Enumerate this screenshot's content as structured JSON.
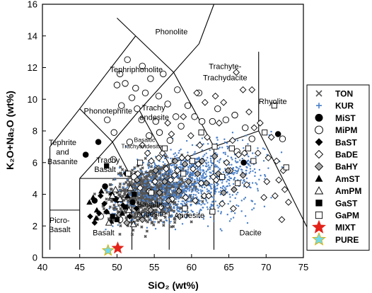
{
  "chart_data": {
    "type": "scatter",
    "xlabel": "SiO₂ (wt%)",
    "ylabel": "K₂O+Na₂O (wt%)",
    "xlim": [
      40,
      75
    ],
    "ylim": [
      0,
      16
    ],
    "xticks": [
      40,
      45,
      50,
      55,
      60,
      65,
      70,
      75
    ],
    "yticks": [
      0,
      2,
      4,
      6,
      8,
      10,
      12,
      14,
      16
    ],
    "grid": false,
    "legend_position": "right",
    "fields": [
      {
        "label": "Phonolite",
        "x": 57.3,
        "y": 14.1
      },
      {
        "label": "Trachyte-",
        "x": 64.5,
        "y": 11.9
      },
      {
        "label": "Trachydacite",
        "x": 64.5,
        "y": 11.2
      },
      {
        "label": "Tephriphonolite",
        "x": 52.6,
        "y": 11.7
      },
      {
        "label": "Phonotephrite",
        "x": 48.8,
        "y": 9.1
      },
      {
        "label": "Trachy",
        "x": 54.9,
        "y": 9.3
      },
      {
        "label": "andesite",
        "x": 55.0,
        "y": 8.7
      },
      {
        "label": "Rhyolite",
        "x": 70.9,
        "y": 9.7
      },
      {
        "label": "Tephrite",
        "x": 42.7,
        "y": 7.1
      },
      {
        "label": "and",
        "x": 42.7,
        "y": 6.5
      },
      {
        "label": "Basanite",
        "x": 42.7,
        "y": 5.9
      },
      {
        "label": "Trachy",
        "x": 48.8,
        "y": 6.0
      },
      {
        "label": "Basalt",
        "x": 48.4,
        "y": 5.4
      },
      {
        "label": "Dacite",
        "x": 67.9,
        "y": 1.4
      },
      {
        "label": "Andesite",
        "x": 59.7,
        "y": 2.5
      },
      {
        "label": "Basaltic",
        "x": 54.5,
        "y": 3.2
      },
      {
        "label": "andesite",
        "x": 54.6,
        "y": 2.6
      },
      {
        "label": "Picro-",
        "x": 42.3,
        "y": 2.2
      },
      {
        "label": "Basalt",
        "x": 42.3,
        "y": 1.6
      },
      {
        "label": "Basalt",
        "x": 48.2,
        "y": 1.4
      }
    ],
    "fields_small": [
      {
        "label": "Basaltic",
        "x": 53.7,
        "y": 7.3
      },
      {
        "label": "Trachyandesite",
        "x": 53.3,
        "y": 6.9
      }
    ],
    "series": [
      {
        "name": "TON",
        "marker": "x",
        "color": "#555555",
        "cloud": {
          "x": [
            45.5,
            63.0
          ],
          "y": [
            0.8,
            6.8
          ],
          "center": [
            51.5,
            3.6
          ],
          "n": 800
        }
      },
      {
        "name": "KUR",
        "marker": "plus",
        "color": "#4a7fc6",
        "cloud": {
          "x": [
            45.0,
            75.0
          ],
          "y": [
            0.8,
            8.4
          ],
          "center": [
            58.0,
            4.6
          ],
          "n": 1100
        }
      },
      {
        "name": "MiST",
        "marker": "circle-filled",
        "color": "#000000",
        "points": [
          [
            47.5,
            7.3
          ],
          [
            48.4,
            4.5
          ],
          [
            45.8,
            6.5
          ],
          [
            47.0,
            3.6
          ],
          [
            71.6,
            7.8
          ],
          [
            67.0,
            6.0
          ],
          [
            52.1,
            3.5
          ],
          [
            49.8,
            3.7
          ]
        ]
      },
      {
        "name": "MiPM",
        "marker": "circle-open",
        "color": "#000000",
        "points": [
          [
            51.1,
            11.0
          ],
          [
            52.5,
            10.7
          ],
          [
            52.0,
            10.1
          ],
          [
            53.4,
            12.1
          ],
          [
            54.5,
            11.3
          ],
          [
            55.6,
            10.2
          ],
          [
            56.8,
            9.7
          ],
          [
            56.2,
            11.6
          ],
          [
            57.9,
            8.9
          ],
          [
            58.6,
            8.3
          ],
          [
            59.5,
            9.6
          ],
          [
            60.4,
            8.9
          ],
          [
            61.4,
            8.6
          ],
          [
            62.8,
            8.6
          ],
          [
            64.6,
            8.7
          ],
          [
            65.8,
            9.0
          ],
          [
            67.2,
            8.2
          ],
          [
            68.1,
            7.5
          ],
          [
            52.7,
            9.4
          ],
          [
            53.3,
            8.7
          ],
          [
            54.3,
            7.7
          ],
          [
            55.2,
            8.6
          ],
          [
            50.6,
            9.6
          ],
          [
            50.4,
            11.6
          ],
          [
            50.0,
            10.9
          ],
          [
            51.4,
            12.5
          ],
          [
            49.6,
            7.9
          ],
          [
            48.7,
            8.7
          ],
          [
            55.7,
            7.9
          ],
          [
            57.1,
            7.4
          ],
          [
            61.0,
            10.4
          ],
          [
            63.5,
            9.4
          ],
          [
            58.1,
            10.6
          ],
          [
            66.1,
            6.7
          ],
          [
            72.2,
            7.5
          ],
          [
            51.7,
            7.3
          ],
          [
            53.8,
            10.4
          ],
          [
            52.3,
            5.1
          ],
          [
            47.8,
            2.6
          ],
          [
            50.4,
            2.4
          ],
          [
            49.5,
            6.2
          ]
        ]
      },
      {
        "name": "BaST",
        "marker": "diamond-filled",
        "color": "#000000",
        "points": [
          [
            47.8,
            3.9
          ],
          [
            48.3,
            3.4
          ],
          [
            47.6,
            2.8
          ],
          [
            46.4,
            2.6
          ],
          [
            49.3,
            4.0
          ],
          [
            50.8,
            3.3
          ],
          [
            51.7,
            2.6
          ],
          [
            52.6,
            3.1
          ],
          [
            47.0,
            2.2
          ],
          [
            48.6,
            2.9
          ],
          [
            51.2,
            5.3
          ],
          [
            50.1,
            3.6
          ]
        ]
      },
      {
        "name": "BaDE",
        "marker": "diamond-open",
        "color": "#000000",
        "points": [
          [
            61.8,
            9.8
          ],
          [
            63.2,
            10.2
          ],
          [
            64.3,
            9.8
          ],
          [
            66.0,
            11.7
          ],
          [
            66.9,
            10.6
          ],
          [
            67.7,
            9.2
          ],
          [
            68.4,
            8.2
          ],
          [
            69.2,
            8.5
          ],
          [
            70.7,
            7.6
          ],
          [
            71.4,
            6.1
          ],
          [
            72.5,
            4.3
          ],
          [
            73.0,
            3.5
          ],
          [
            72.3,
            5.5
          ],
          [
            70.1,
            4.8
          ],
          [
            68.9,
            6.6
          ],
          [
            67.1,
            6.6
          ],
          [
            66.3,
            6.5
          ],
          [
            65.2,
            5.5
          ],
          [
            64.7,
            6.0
          ],
          [
            63.3,
            4.9
          ],
          [
            62.9,
            5.1
          ],
          [
            61.3,
            4.7
          ],
          [
            60.9,
            5.9
          ],
          [
            60.2,
            5.6
          ],
          [
            59.5,
            6.3
          ],
          [
            58.7,
            6.3
          ],
          [
            58.1,
            5.5
          ],
          [
            57.7,
            5.2
          ],
          [
            57.2,
            4.9
          ],
          [
            56.6,
            5.6
          ],
          [
            56.1,
            6.6
          ],
          [
            55.6,
            6.3
          ],
          [
            54.6,
            6.1
          ],
          [
            54.1,
            6.6
          ],
          [
            53.4,
            7.1
          ],
          [
            52.8,
            5.3
          ],
          [
            53.1,
            4.4
          ],
          [
            54.3,
            4.2
          ],
          [
            55.1,
            4.8
          ],
          [
            55.9,
            3.2
          ],
          [
            57.4,
            3.7
          ],
          [
            58.4,
            2.6
          ],
          [
            59.2,
            3.8
          ],
          [
            60.5,
            3.6
          ],
          [
            61.7,
            3.9
          ],
          [
            62.3,
            3.9
          ],
          [
            64.1,
            3.4
          ],
          [
            65.6,
            3.1
          ],
          [
            67.4,
            4.6
          ],
          [
            69.7,
            3.8
          ],
          [
            71.2,
            3.9
          ],
          [
            72.1,
            2.4
          ],
          [
            63.7,
            8.5
          ],
          [
            65.5,
            7.4
          ],
          [
            62.1,
            7.6
          ],
          [
            61.1,
            7.1
          ],
          [
            59.9,
            7.7
          ],
          [
            56.8,
            8.5
          ],
          [
            58.9,
            8.9
          ],
          [
            60.7,
            10.4
          ],
          [
            57.3,
            7.8
          ],
          [
            68.1,
            10.6
          ],
          [
            70.3,
            6.3
          ],
          [
            71.7,
            4.9
          ]
        ]
      },
      {
        "name": "BaHY",
        "marker": "diamond-gray",
        "color": "#aaaaaa",
        "points": [
          [
            50.3,
            2.7
          ],
          [
            51.3,
            2.2
          ],
          [
            53.4,
            2.4
          ],
          [
            54.5,
            3.0
          ],
          [
            55.7,
            4.1
          ],
          [
            56.9,
            3.6
          ],
          [
            58.3,
            4.2
          ],
          [
            59.6,
            4.8
          ],
          [
            60.8,
            5.3
          ],
          [
            62.0,
            4.7
          ],
          [
            63.6,
            5.3
          ],
          [
            64.3,
            4.1
          ],
          [
            65.7,
            4.3
          ],
          [
            66.9,
            5.2
          ],
          [
            55.2,
            5.5
          ],
          [
            57.8,
            6.1
          ],
          [
            61.4,
            6.1
          ],
          [
            63.1,
            6.4
          ],
          [
            52.7,
            4.9
          ],
          [
            56.4,
            4.8
          ],
          [
            59.1,
            5.9
          ],
          [
            64.9,
            5.5
          ]
        ]
      },
      {
        "name": "AmST",
        "marker": "triangle-filled",
        "color": "#000000",
        "points": [
          [
            46.3,
            3.5
          ],
          [
            47.3,
            3.0
          ],
          [
            48.7,
            2.9
          ],
          [
            47.2,
            2.5
          ],
          [
            46.8,
            3.8
          ],
          [
            50.7,
            2.8
          ],
          [
            49.2,
            2.3
          ],
          [
            47.9,
            4.2
          ],
          [
            51.4,
            3.9
          ]
        ]
      },
      {
        "name": "AmPM",
        "marker": "triangle-open",
        "color": "#000000",
        "points": [
          [
            49.8,
            4.3
          ],
          [
            50.4,
            3.7
          ],
          [
            51.6,
            3.0
          ],
          [
            52.2,
            2.1
          ],
          [
            53.0,
            2.7
          ],
          [
            48.9,
            2.2
          ],
          [
            49.4,
            3.9
          ],
          [
            51.8,
            4.4
          ]
        ]
      },
      {
        "name": "GaST",
        "marker": "square-filled",
        "color": "#000000",
        "points": [
          [
            48.6,
            5.8
          ],
          [
            49.4,
            2.6
          ],
          [
            50.0,
            2.4
          ],
          [
            52.3,
            4.0
          ],
          [
            51.1,
            3.2
          ]
        ]
      },
      {
        "name": "GaPM",
        "marker": "square-open",
        "color": "#000000",
        "points": [
          [
            51.5,
            5.3
          ],
          [
            53.1,
            6.0
          ],
          [
            60.1,
            6.1
          ],
          [
            63.1,
            7.0
          ],
          [
            64.1,
            5.1
          ],
          [
            66.2,
            4.7
          ],
          [
            67.6,
            6.9
          ],
          [
            68.3,
            6.1
          ],
          [
            69.8,
            7.9
          ],
          [
            71.1,
            9.6
          ],
          [
            72.7,
            5.7
          ],
          [
            61.3,
            7.9
          ],
          [
            65.4,
            6.9
          ],
          [
            54.6,
            4.1
          ],
          [
            58.9,
            5.3
          ],
          [
            56.4,
            6.9
          ],
          [
            59.1,
            3.1
          ],
          [
            62.8,
            2.9
          ]
        ]
      },
      {
        "name": "MIXT",
        "marker": "star",
        "color": "#e32219",
        "points": [
          [
            50.1,
            0.6
          ]
        ]
      },
      {
        "name": "PURE",
        "marker": "star",
        "color": "#6ed9ef",
        "stroke": "#d6b30a",
        "points": [
          [
            48.8,
            0.45
          ]
        ]
      }
    ]
  }
}
